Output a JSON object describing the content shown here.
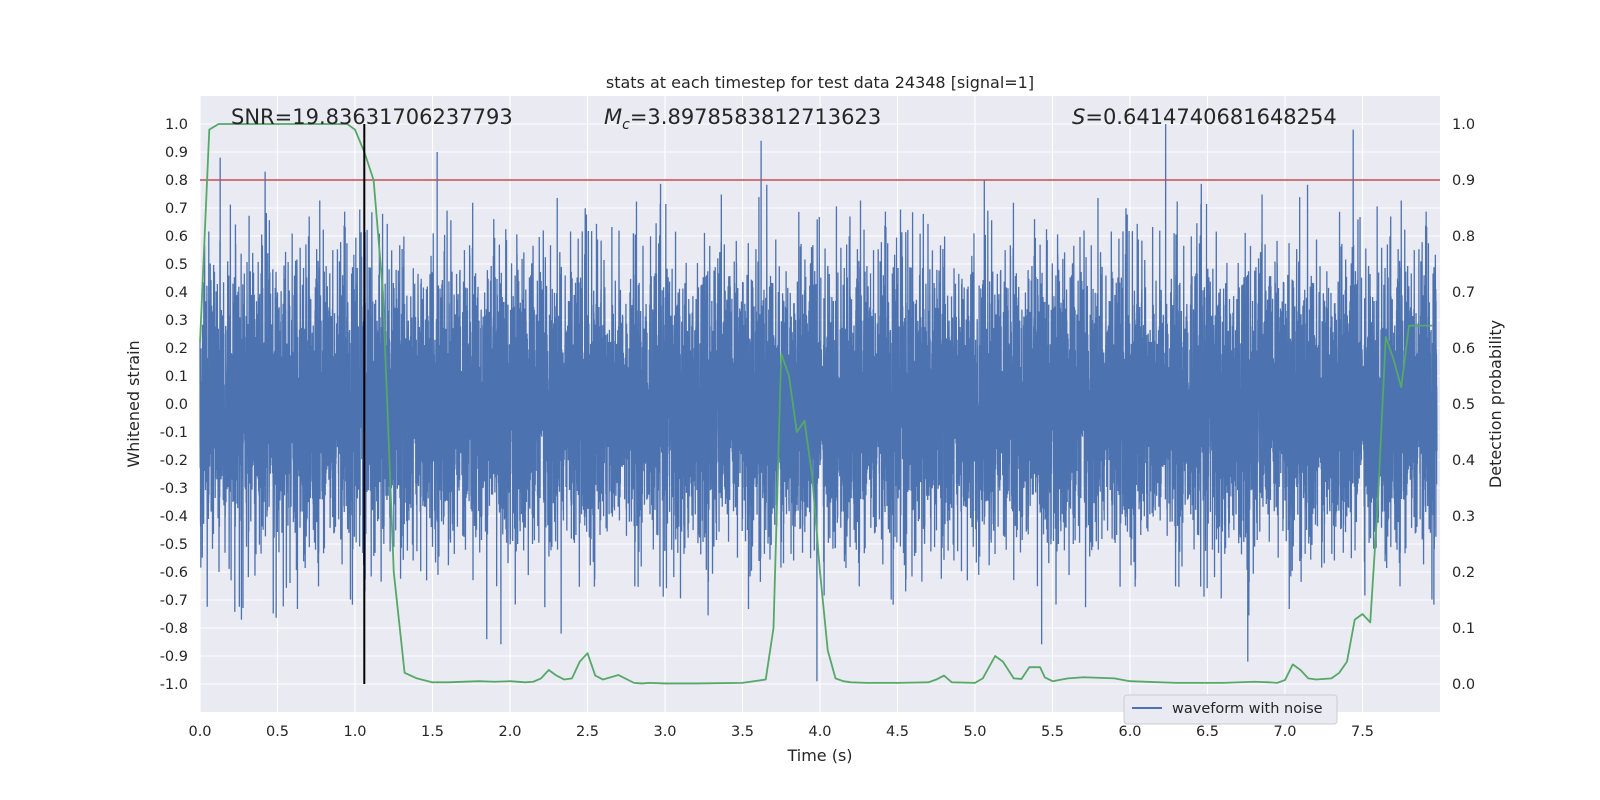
{
  "chart_data": {
    "type": "line",
    "title": "stats at each timestep for test data 24348 [signal=1]",
    "xlabel": "Time (s)",
    "ylabel_left": "Whitened strain",
    "ylabel_right": "Detection probability",
    "xlim": [
      0,
      8
    ],
    "ylim_left": [
      -1.1,
      1.1
    ],
    "ylim_right": [
      -0.05,
      1.05
    ],
    "x_ticks": [
      "0.0",
      "0.5",
      "1.0",
      "1.5",
      "2.0",
      "2.5",
      "3.0",
      "3.5",
      "4.0",
      "4.5",
      "5.0",
      "5.5",
      "6.0",
      "6.5",
      "7.0",
      "7.5"
    ],
    "y_ticks_left": [
      "1.0",
      "0.9",
      "0.8",
      "0.7",
      "0.6",
      "0.5",
      "0.4",
      "0.3",
      "0.2",
      "0.1",
      "0.0",
      "-0.1",
      "-0.2",
      "-0.3",
      "-0.4",
      "-0.5",
      "-0.6",
      "-0.7",
      "-0.8",
      "-0.9",
      "-1.0"
    ],
    "y_ticks_right": [
      "1.0",
      "0.9",
      "0.8",
      "0.7",
      "0.6",
      "0.5",
      "0.4",
      "0.3",
      "0.2",
      "0.1",
      "0.0"
    ],
    "threshold": {
      "value": 0.9,
      "axis": "right",
      "color": "#c44e52"
    },
    "marker_line": {
      "x": 1.06,
      "y_range": [
        -1.0,
        1.0
      ],
      "color": "#000000"
    },
    "annotations": {
      "snr": "SNR=19.83631706237793",
      "mc_symbol": "M",
      "mc_sub": "c",
      "mc_value": "=3.8978583812713623",
      "s_symbol": "S",
      "s_value": "=0.6414740681648254"
    },
    "series": [
      {
        "name": "waveform with noise",
        "color": "#4c72b0",
        "axis": "left",
        "kind": "noise",
        "sample_rate": 2048,
        "typical_abs": 0.3,
        "notable_peaks": [
          {
            "x": 0.13,
            "y": 0.88
          },
          {
            "x": 0.42,
            "y": 0.83
          },
          {
            "x": 1.53,
            "y": 0.9
          },
          {
            "x": 3.62,
            "y": 0.94
          },
          {
            "x": 5.06,
            "y": 0.8
          },
          {
            "x": 6.23,
            "y": 1.0
          },
          {
            "x": 7.44,
            "y": 0.98
          },
          {
            "x": 3.98,
            "y": -0.99
          },
          {
            "x": 1.85,
            "y": -0.84
          },
          {
            "x": 2.33,
            "y": -0.82
          },
          {
            "x": 6.76,
            "y": -0.92
          }
        ]
      },
      {
        "name": "detection probability",
        "color": "#55a868",
        "axis": "right",
        "x": [
          0.0,
          0.06,
          0.12,
          0.2,
          0.3,
          0.5,
          0.7,
          0.85,
          0.95,
          1.0,
          1.06,
          1.12,
          1.18,
          1.25,
          1.32,
          1.4,
          1.5,
          1.6,
          1.8,
          1.9,
          2.0,
          2.1,
          2.15,
          2.2,
          2.25,
          2.3,
          2.35,
          2.4,
          2.45,
          2.5,
          2.55,
          2.6,
          2.65,
          2.7,
          2.8,
          2.85,
          2.9,
          3.0,
          3.2,
          3.5,
          3.65,
          3.7,
          3.75,
          3.8,
          3.85,
          3.9,
          3.95,
          4.0,
          4.05,
          4.1,
          4.15,
          4.2,
          4.3,
          4.5,
          4.7,
          4.75,
          4.8,
          4.85,
          5.0,
          5.05,
          5.13,
          5.18,
          5.25,
          5.3,
          5.35,
          5.42,
          5.45,
          5.5,
          5.6,
          5.7,
          5.9,
          6.0,
          6.3,
          6.6,
          6.8,
          6.9,
          6.95,
          7.0,
          7.05,
          7.1,
          7.15,
          7.2,
          7.3,
          7.35,
          7.4,
          7.45,
          7.5,
          7.55,
          7.6,
          7.65,
          7.7,
          7.75,
          7.8,
          7.85,
          7.9,
          7.95
        ],
        "y": [
          0.61,
          0.99,
          1.0,
          1.0,
          1.0,
          1.0,
          1.0,
          1.0,
          1.0,
          0.99,
          0.95,
          0.9,
          0.7,
          0.2,
          0.02,
          0.01,
          0.003,
          0.003,
          0.005,
          0.004,
          0.005,
          0.003,
          0.004,
          0.01,
          0.025,
          0.015,
          0.008,
          0.01,
          0.04,
          0.055,
          0.015,
          0.008,
          0.012,
          0.016,
          0.002,
          0.001,
          0.002,
          0.001,
          0.001,
          0.002,
          0.008,
          0.1,
          0.59,
          0.55,
          0.45,
          0.47,
          0.37,
          0.2,
          0.06,
          0.01,
          0.005,
          0.003,
          0.002,
          0.002,
          0.003,
          0.008,
          0.015,
          0.003,
          0.002,
          0.01,
          0.05,
          0.04,
          0.01,
          0.009,
          0.03,
          0.03,
          0.012,
          0.005,
          0.01,
          0.012,
          0.01,
          0.005,
          0.002,
          0.002,
          0.004,
          0.003,
          0.002,
          0.007,
          0.035,
          0.025,
          0.01,
          0.008,
          0.01,
          0.02,
          0.04,
          0.115,
          0.125,
          0.11,
          0.33,
          0.62,
          0.58,
          0.53,
          0.64,
          0.64,
          0.64,
          0.64
        ]
      }
    ],
    "legend": {
      "entries": [
        "waveform with noise"
      ],
      "placement": "lower-right"
    }
  }
}
